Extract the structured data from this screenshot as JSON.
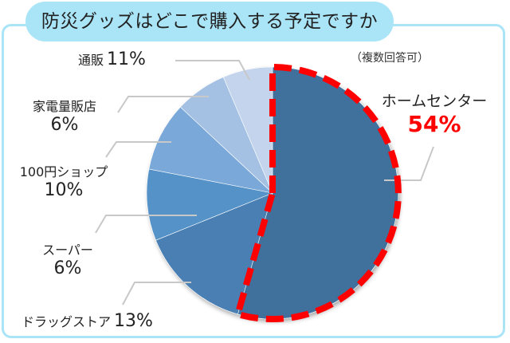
{
  "title": "防災グッズはどこで購入する予定ですか",
  "note": "（複数回答可）",
  "colors": {
    "frame": "#a9e4f7",
    "title_bg": "#a9e4f7",
    "highlight": "#ff0000",
    "leader": "#c8c8c8"
  },
  "labels": {
    "home_center": {
      "name": "ホームセンター",
      "pct": "54%"
    },
    "drugstore": {
      "name": "ドラッグストア",
      "pct": "13%"
    },
    "super": {
      "name": "スーパー",
      "pct": "6%"
    },
    "hundred_yen": {
      "name": "100円ショップ",
      "pct": "10%"
    },
    "electronics": {
      "name": "家電量販店",
      "pct": "6%"
    },
    "mail_order": {
      "name": "通販",
      "pct": "11%"
    }
  },
  "chart_data": {
    "type": "pie",
    "title": "防災グッズはどこで購入する予定ですか",
    "subtitle": "（複数回答可）",
    "categories": [
      "ホームセンター",
      "ドラッグストア",
      "スーパー",
      "100円ショップ",
      "家電量販店",
      "通販"
    ],
    "values": [
      54,
      13,
      6,
      10,
      6,
      11
    ],
    "unit": "%",
    "highlighted": "ホームセンター",
    "slice_colors": [
      "#41719c",
      "#4a7fb3",
      "#5592c8",
      "#7aa8d8",
      "#a4c1e4",
      "#c3d4ec"
    ],
    "start_angle_deg": 0,
    "direction": "clockwise",
    "legend": "none (leader-line labels)"
  }
}
